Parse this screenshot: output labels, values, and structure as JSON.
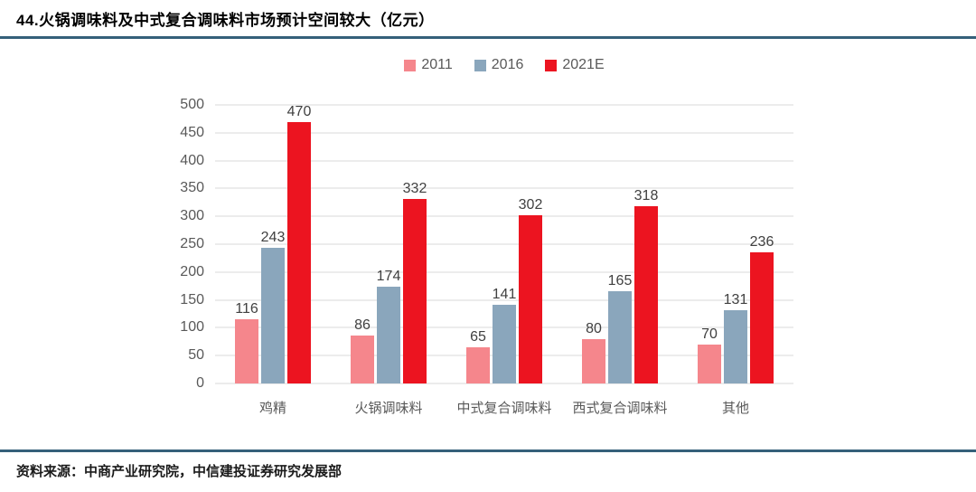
{
  "header": {
    "title": "44.火锅调味料及中式复合调味料市场预计空间较大（亿元）"
  },
  "footer": {
    "source": "资料来源：中商产业研究院，中信建投证券研究发展部"
  },
  "colors": {
    "rule": "#35607a",
    "gridline": "#d9d9d9",
    "axis_text": "#595959",
    "value_label_text": "#404040",
    "series_2011": "#f5868c",
    "series_2016": "#8aa6bc",
    "series_2021E": "#ec1420"
  },
  "chart_data": {
    "type": "bar",
    "title": "",
    "xlabel": "",
    "ylabel": "",
    "categories": [
      "鸡精",
      "火锅调味料",
      "中式复合调味料",
      "西式复合调味料",
      "其他"
    ],
    "series": [
      {
        "name": "2011",
        "color": "#f5868c",
        "values": [
          116,
          86,
          65,
          80,
          70
        ]
      },
      {
        "name": "2016",
        "color": "#8aa6bc",
        "values": [
          243,
          174,
          141,
          165,
          131
        ]
      },
      {
        "name": "2021E",
        "color": "#ec1420",
        "values": [
          470,
          332,
          302,
          318,
          236
        ]
      }
    ],
    "ylim": [
      0,
      500
    ],
    "yticks": [
      0,
      50,
      100,
      150,
      200,
      250,
      300,
      350,
      400,
      450,
      500
    ],
    "grid": true,
    "legend_position": "top"
  }
}
